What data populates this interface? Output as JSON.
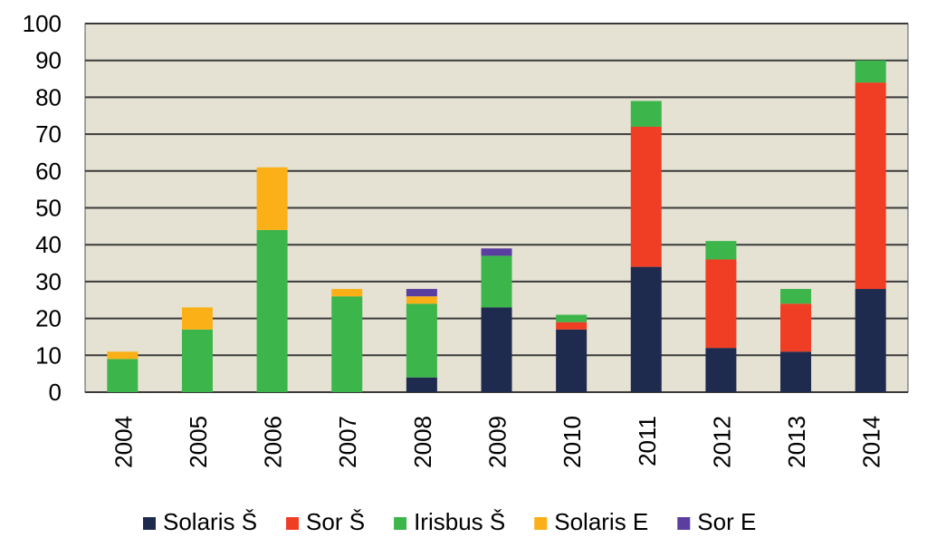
{
  "chart_data": {
    "type": "bar",
    "stacked": true,
    "title": "",
    "xlabel": "",
    "ylabel": "",
    "ylim": [
      0,
      100
    ],
    "yticks": [
      0,
      10,
      20,
      30,
      40,
      50,
      60,
      70,
      80,
      90,
      100
    ],
    "ytick_labels": [
      "0",
      "10",
      "20",
      "30",
      "40",
      "50",
      "60",
      "70",
      "80",
      "90",
      "100"
    ],
    "grid": true,
    "legend_position": "bottom",
    "categories": [
      "2004",
      "2005",
      "2006",
      "2007",
      "2008",
      "2009",
      "2010",
      "2011",
      "2012",
      "2013",
      "2014"
    ],
    "series": [
      {
        "name": "Solaris Š",
        "color": "#1f2a4f",
        "values": [
          0,
          0,
          0,
          0,
          4,
          23,
          17,
          34,
          12,
          11,
          28
        ]
      },
      {
        "name": "Sor Š",
        "color": "#ef3e23",
        "values": [
          0,
          0,
          0,
          0,
          0,
          0,
          2,
          38,
          24,
          13,
          56
        ]
      },
      {
        "name": "Irisbus Š",
        "color": "#3cb54a",
        "values": [
          9,
          17,
          44,
          26,
          20,
          14,
          2,
          7,
          5,
          4,
          6
        ]
      },
      {
        "name": "Solaris E",
        "color": "#fbb017",
        "values": [
          2,
          6,
          17,
          2,
          2,
          0,
          0,
          0,
          0,
          0,
          0
        ]
      },
      {
        "name": "Sor E",
        "color": "#5b3fa0",
        "values": [
          0,
          0,
          0,
          0,
          2,
          2,
          0,
          0,
          0,
          0,
          0
        ]
      }
    ],
    "plot_background": "#e5e2d3",
    "grid_color": "#3a3a3a"
  }
}
